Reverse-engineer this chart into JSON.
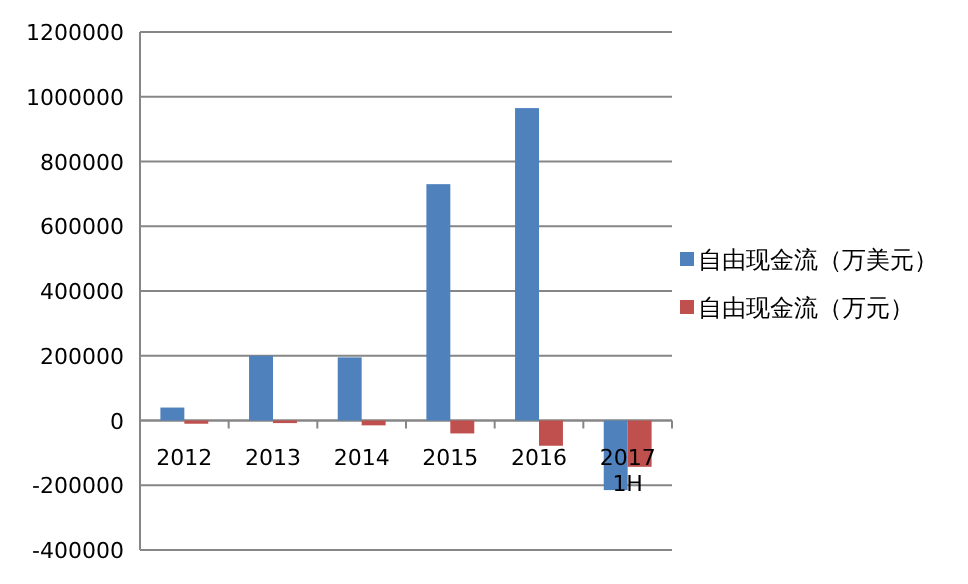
{
  "chart_data": {
    "type": "bar",
    "categories": [
      "2012",
      "2013",
      "2014",
      "2015",
      "2016",
      "2017 1H"
    ],
    "series": [
      {
        "name": "自由现金流（万美元）",
        "color": "#4f81bd",
        "values": [
          40000,
          200000,
          195000,
          730000,
          965000,
          -215000
        ]
      },
      {
        "name": "自由现金流（万元）",
        "color": "#c0504d",
        "values": [
          -10000,
          -8000,
          -15000,
          -40000,
          -78000,
          -143000
        ]
      }
    ],
    "ylim": [
      -400000,
      1200000
    ],
    "yticks": [
      -400000,
      -200000,
      0,
      200000,
      400000,
      600000,
      800000,
      1000000,
      1200000
    ],
    "grid": "y",
    "legend": "right"
  }
}
